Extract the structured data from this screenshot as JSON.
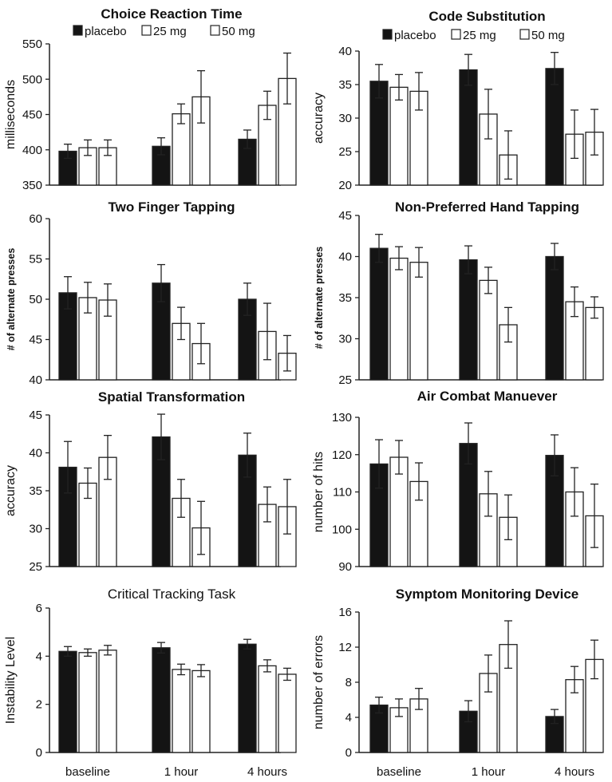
{
  "legend_labels": [
    "placebo",
    "25 mg",
    "50 mg"
  ],
  "x_categories": [
    "baseline",
    "1 hour",
    "4 hours"
  ],
  "colors": {
    "placebo": "#141414",
    "25 mg": "#ffffff",
    "50 mg": "#ffffff",
    "axis": "#222222"
  },
  "chart_data": [
    {
      "type": "bar",
      "title": "Choice Reaction Time",
      "ylabel": "milliseconds",
      "ylim": [
        350,
        550
      ],
      "yticks": [
        350,
        400,
        450,
        500,
        550
      ],
      "categories": [
        "baseline",
        "1 hour",
        "4 hours"
      ],
      "legend": "top-left",
      "series": [
        {
          "name": "placebo",
          "values": [
            398,
            405,
            415
          ],
          "errors": [
            10,
            12,
            13
          ]
        },
        {
          "name": "25 mg",
          "values": [
            403,
            451,
            463
          ],
          "errors": [
            11,
            14,
            20
          ]
        },
        {
          "name": "50 mg",
          "values": [
            403,
            475,
            501
          ],
          "errors": [
            11,
            37,
            36
          ]
        }
      ]
    },
    {
      "type": "bar",
      "title": "Code Substitution",
      "ylabel": "accuracy",
      "ylim": [
        20,
        40
      ],
      "yticks": [
        20,
        25,
        30,
        35,
        40
      ],
      "categories": [
        "baseline",
        "1 hour",
        "4 hours"
      ],
      "legend": "top-left",
      "series": [
        {
          "name": "placebo",
          "values": [
            35.5,
            37.2,
            37.4
          ],
          "errors": [
            2.5,
            2.3,
            2.4
          ]
        },
        {
          "name": "25 mg",
          "values": [
            34.6,
            30.6,
            27.6
          ],
          "errors": [
            1.9,
            3.7,
            3.6
          ]
        },
        {
          "name": "50 mg",
          "values": [
            34.0,
            24.5,
            27.9
          ],
          "errors": [
            2.8,
            3.6,
            3.4
          ]
        }
      ]
    },
    {
      "type": "bar",
      "title": "Two Finger Tapping",
      "ylabel": "# of alternate presses",
      "ylim": [
        40,
        60
      ],
      "yticks": [
        40,
        45,
        50,
        55,
        60
      ],
      "categories": [
        "baseline",
        "1 hour",
        "4 hours"
      ],
      "series": [
        {
          "name": "placebo",
          "values": [
            50.8,
            52.0,
            50.0
          ],
          "errors": [
            2.0,
            2.3,
            2.0
          ]
        },
        {
          "name": "25 mg",
          "values": [
            50.2,
            47.0,
            46.0
          ],
          "errors": [
            1.9,
            2.0,
            3.5
          ]
        },
        {
          "name": "50 mg",
          "values": [
            49.9,
            44.5,
            43.3
          ],
          "errors": [
            2.0,
            2.5,
            2.2
          ]
        }
      ]
    },
    {
      "type": "bar",
      "title": "Non-Preferred Hand Tapping",
      "ylabel": "# of alternate presses",
      "ylim": [
        25,
        45
      ],
      "yticks": [
        25,
        30,
        35,
        40,
        45
      ],
      "categories": [
        "baseline",
        "1 hour",
        "4 hours"
      ],
      "series": [
        {
          "name": "placebo",
          "values": [
            41.0,
            39.6,
            40.0
          ],
          "errors": [
            1.7,
            1.7,
            1.6
          ]
        },
        {
          "name": "25 mg",
          "values": [
            39.8,
            37.1,
            34.5
          ],
          "errors": [
            1.4,
            1.6,
            1.8
          ]
        },
        {
          "name": "50 mg",
          "values": [
            39.3,
            31.7,
            33.8
          ],
          "errors": [
            1.8,
            2.1,
            1.3
          ]
        }
      ]
    },
    {
      "type": "bar",
      "title": "Spatial Transformation",
      "ylabel": "accuracy",
      "ylim": [
        25,
        45
      ],
      "yticks": [
        25,
        30,
        35,
        40,
        45
      ],
      "categories": [
        "baseline",
        "1 hour",
        "4 hours"
      ],
      "series": [
        {
          "name": "placebo",
          "values": [
            38.1,
            42.1,
            39.7
          ],
          "errors": [
            3.4,
            3.0,
            2.9
          ]
        },
        {
          "name": "25 mg",
          "values": [
            36.0,
            34.0,
            33.2
          ],
          "errors": [
            2.0,
            2.5,
            2.3
          ]
        },
        {
          "name": "50 mg",
          "values": [
            39.4,
            30.1,
            32.9
          ],
          "errors": [
            2.9,
            3.5,
            3.6
          ]
        }
      ]
    },
    {
      "type": "bar",
      "title": "Air Combat Manuever",
      "ylabel": "number of hits",
      "ylim": [
        90,
        130
      ],
      "yticks": [
        90,
        100,
        110,
        120,
        130
      ],
      "categories": [
        "baseline",
        "1 hour",
        "4 hours"
      ],
      "series": [
        {
          "name": "placebo",
          "values": [
            117.5,
            123.0,
            119.8
          ],
          "errors": [
            6.5,
            5.5,
            5.5
          ]
        },
        {
          "name": "25 mg",
          "values": [
            119.3,
            109.5,
            110.0
          ],
          "errors": [
            4.5,
            6.0,
            6.5
          ]
        },
        {
          "name": "50 mg",
          "values": [
            112.8,
            103.2,
            103.6
          ],
          "errors": [
            5.0,
            6.0,
            8.5
          ]
        }
      ]
    },
    {
      "type": "bar",
      "title": "Critical Tracking Task",
      "ylabel": "Instability Level",
      "ylim": [
        0,
        6
      ],
      "yticks": [
        0,
        2,
        4,
        6
      ],
      "categories": [
        "baseline",
        "1 hour",
        "4 hours"
      ],
      "series": [
        {
          "name": "placebo",
          "values": [
            4.2,
            4.35,
            4.5
          ],
          "errors": [
            0.2,
            0.22,
            0.2
          ]
        },
        {
          "name": "25 mg",
          "values": [
            4.15,
            3.45,
            3.6
          ],
          "errors": [
            0.15,
            0.22,
            0.25
          ]
        },
        {
          "name": "50 mg",
          "values": [
            4.25,
            3.4,
            3.25
          ],
          "errors": [
            0.2,
            0.25,
            0.25
          ]
        }
      ]
    },
    {
      "type": "bar",
      "title": "Symptom Monitoring Device",
      "ylabel": "number of errors",
      "ylim": [
        0,
        16
      ],
      "yticks": [
        0,
        4,
        8,
        12,
        16
      ],
      "categories": [
        "baseline",
        "1 hour",
        "4 hours"
      ],
      "series": [
        {
          "name": "placebo",
          "values": [
            5.4,
            4.7,
            4.1
          ],
          "errors": [
            0.9,
            1.2,
            0.8
          ]
        },
        {
          "name": "25 mg",
          "values": [
            5.1,
            9.0,
            8.3
          ],
          "errors": [
            1.0,
            2.1,
            1.5
          ]
        },
        {
          "name": "50 mg",
          "values": [
            6.1,
            12.3,
            10.6
          ],
          "errors": [
            1.2,
            2.7,
            2.2
          ]
        }
      ]
    }
  ]
}
